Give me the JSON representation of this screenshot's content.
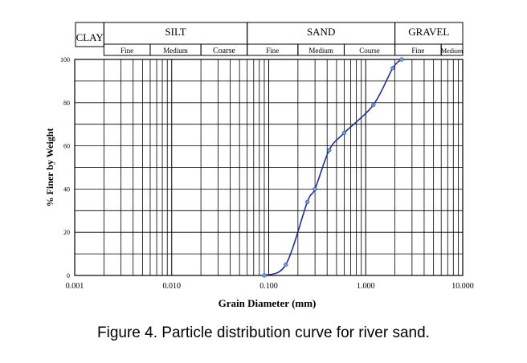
{
  "caption": "Figure 4. Particle distribution curve for river sand.",
  "chart_data": {
    "type": "line",
    "title": "",
    "xlabel": "Grain Diameter (mm)",
    "ylabel": "% Finer by Weight",
    "x_scale": "log",
    "xlim": [
      0.001,
      10
    ],
    "ylim": [
      0,
      100
    ],
    "x_ticks": [
      {
        "value": 0.001,
        "label": "0.001"
      },
      {
        "value": 0.01,
        "label": "0.010"
      },
      {
        "value": 0.1,
        "label": "0.100"
      },
      {
        "value": 1,
        "label": "1.000"
      },
      {
        "value": 10,
        "label": "10.000"
      }
    ],
    "y_ticks": [
      {
        "value": 0,
        "label": "0"
      },
      {
        "value": 20,
        "label": "20"
      },
      {
        "value": 40,
        "label": "40"
      },
      {
        "value": 60,
        "label": "60"
      },
      {
        "value": 80,
        "label": "80"
      },
      {
        "value": 100,
        "label": "100"
      }
    ],
    "grid": true,
    "line_color": "#1f2f8f",
    "marker_color": "#6f9fd8",
    "series": [
      {
        "x": [
          0.09,
          0.15,
          0.25,
          0.3,
          0.42,
          0.6,
          1.2,
          1.9,
          2.35
        ],
        "y": [
          0,
          5,
          34,
          40,
          58,
          66,
          79,
          96,
          100
        ]
      }
    ],
    "classification": {
      "row1": [
        {
          "label": "CLAY",
          "from": 0.001,
          "to": 0.002
        },
        {
          "label": "SILT",
          "from": 0.002,
          "to": 0.06
        },
        {
          "label": "SAND",
          "from": 0.06,
          "to": 2.0
        },
        {
          "label": "GRAVEL",
          "from": 2.0,
          "to": 10
        }
      ],
      "row2": [
        {
          "label": "Fine",
          "from": 0.002,
          "to": 0.006
        },
        {
          "label": "Medium",
          "from": 0.006,
          "to": 0.02
        },
        {
          "label": "Coarse",
          "from": 0.02,
          "to": 0.06
        },
        {
          "label": "Fine",
          "from": 0.06,
          "to": 0.2
        },
        {
          "label": "Medium",
          "from": 0.2,
          "to": 0.6
        },
        {
          "label": "Course",
          "from": 0.6,
          "to": 2.0
        },
        {
          "label": "Fine",
          "from": 2.0,
          "to": 6.0
        },
        {
          "label": "Medium",
          "from": 6.0,
          "to": 10
        }
      ]
    }
  }
}
